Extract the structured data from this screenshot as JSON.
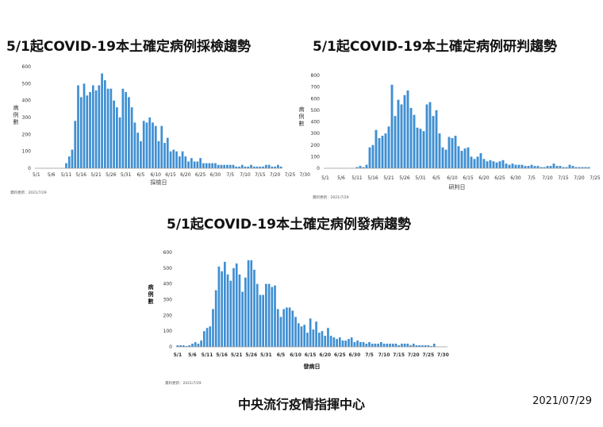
{
  "footer": {
    "org": "中央流行疫情指揮中心",
    "date": "2021/07/29"
  },
  "colors": {
    "bar": "#3f8fd2",
    "axis": "#999999"
  },
  "chart_data": [
    {
      "type": "bar",
      "title": "5/1起COVID-19本土確定病例採檢趨勢",
      "xlabel": "採檢日",
      "ylabel": "病例數",
      "ylim": [
        0,
        600
      ],
      "yticks": [
        0,
        100,
        200,
        300,
        400,
        500,
        600
      ],
      "xticks": [
        "5/1",
        "5/6",
        "5/11",
        "5/16",
        "5/21",
        "5/26",
        "5/31",
        "6/5",
        "6/10",
        "6/15",
        "6/20",
        "6/25",
        "6/30",
        "7/5",
        "7/10",
        "7/15",
        "7/20",
        "7/25",
        "7/30"
      ],
      "note": "資料更新：2021/7/29",
      "x_start": "5/1",
      "values": [
        0,
        0,
        0,
        0,
        0,
        0,
        0,
        0,
        0,
        0,
        30,
        70,
        110,
        280,
        490,
        420,
        500,
        430,
        450,
        490,
        460,
        490,
        560,
        520,
        470,
        470,
        400,
        360,
        300,
        470,
        450,
        420,
        360,
        270,
        210,
        160,
        280,
        270,
        300,
        270,
        250,
        160,
        250,
        150,
        180,
        100,
        110,
        100,
        70,
        100,
        70,
        40,
        60,
        40,
        40,
        60,
        30,
        30,
        30,
        30,
        30,
        20,
        20,
        20,
        20,
        20,
        20,
        10,
        10,
        20,
        10,
        10,
        20,
        10,
        10,
        10,
        10,
        20,
        20,
        10,
        10,
        20,
        10
      ]
    },
    {
      "type": "bar",
      "title": "5/1起COVID-19本土確定病例研判趨勢",
      "xlabel": "研判日",
      "ylabel": "病例數",
      "ylim": [
        0,
        800
      ],
      "yticks": [
        0,
        100,
        200,
        300,
        400,
        500,
        600,
        700,
        800
      ],
      "xticks": [
        "5/1",
        "5/6",
        "5/11",
        "5/16",
        "5/21",
        "5/26",
        "5/31",
        "6/5",
        "6/10",
        "6/15",
        "6/20",
        "6/25",
        "6/30",
        "7/5",
        "7/10",
        "7/15",
        "7/20",
        "7/25",
        "7/30"
      ],
      "note": "資料更新：2021/7/29",
      "x_start": "5/1",
      "values": [
        0,
        0,
        0,
        0,
        0,
        0,
        0,
        0,
        0,
        0,
        10,
        20,
        10,
        30,
        180,
        200,
        330,
        260,
        280,
        300,
        360,
        720,
        450,
        590,
        550,
        630,
        670,
        520,
        460,
        350,
        340,
        320,
        550,
        570,
        450,
        500,
        300,
        180,
        160,
        270,
        260,
        280,
        190,
        150,
        170,
        180,
        100,
        80,
        100,
        130,
        80,
        60,
        70,
        60,
        50,
        60,
        70,
        40,
        30,
        40,
        30,
        30,
        30,
        20,
        20,
        30,
        20,
        20,
        10,
        10,
        20,
        20,
        40,
        20,
        20,
        10,
        10,
        30,
        20,
        10,
        10,
        10,
        10,
        10
      ]
    },
    {
      "type": "bar",
      "title": "5/1起COVID-19本土確定病例發病趨勢",
      "xlabel": "發病日",
      "ylabel": "病例數",
      "ylim": [
        0,
        600
      ],
      "yticks": [
        0,
        100,
        200,
        300,
        400,
        500,
        600
      ],
      "xticks": [
        "5/1",
        "5/6",
        "5/11",
        "5/16",
        "5/21",
        "5/26",
        "5/31",
        "6/5",
        "6/10",
        "6/15",
        "6/20",
        "6/25",
        "6/30",
        "7/5",
        "7/10",
        "7/15",
        "7/20",
        "7/25",
        "7/30"
      ],
      "note": "資料更新：2021/7/29",
      "x_start": "5/1",
      "values": [
        10,
        10,
        10,
        5,
        10,
        20,
        30,
        20,
        40,
        100,
        120,
        130,
        240,
        360,
        510,
        480,
        540,
        460,
        420,
        500,
        530,
        460,
        350,
        440,
        550,
        550,
        490,
        400,
        330,
        330,
        400,
        400,
        380,
        390,
        240,
        190,
        240,
        250,
        250,
        230,
        190,
        150,
        130,
        140,
        90,
        180,
        110,
        160,
        90,
        100,
        70,
        120,
        70,
        60,
        50,
        60,
        40,
        40,
        50,
        60,
        30,
        40,
        30,
        30,
        20,
        30,
        20,
        20,
        20,
        30,
        20,
        20,
        20,
        20,
        20,
        10,
        20,
        20,
        20,
        10,
        20,
        10,
        10,
        10,
        10,
        10,
        5,
        20,
        0,
        0,
        0,
        0
      ]
    }
  ]
}
